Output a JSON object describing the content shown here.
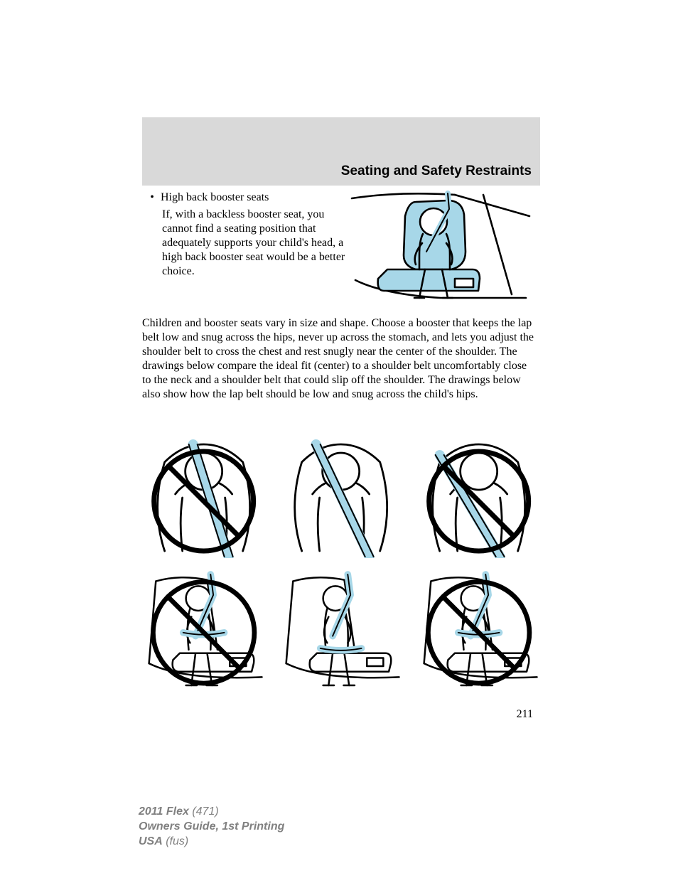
{
  "page": {
    "section_title": "Seating and Safety Restraints",
    "page_number": "211"
  },
  "bullet": {
    "heading": "High back booster seats",
    "body": "If, with a backless booster seat, you cannot find a seating position that adequately supports your child's head, a high back booster seat would be a better choice."
  },
  "paragraph": "Children and booster seats vary in size and shape. Choose a booster that keeps the lap belt low and snug across the hips, never up across the stomach, and lets you adjust the shoulder belt to cross the chest and rest snugly near the center of the shoulder. The drawings below compare the ideal fit (center) to a shoulder belt uncomfortably close to the neck and a shoulder belt that could slip off the shoulder. The drawings below also show how the lap belt should be low and snug across the child's hips.",
  "footer": {
    "line1_bold": "2011 Flex",
    "line1_rest": " (471)",
    "line2": "Owners Guide, 1st Printing",
    "line3_bold": "USA",
    "line3_rest": " (fus)"
  },
  "colors": {
    "header_gray": "#d9d9d9",
    "belt_blue": "#a7d7e8",
    "stroke": "#000000",
    "footer_gray": "#808080",
    "background": "#ffffff"
  },
  "diagrams": {
    "top": {
      "type": "illustration",
      "shows_prohibited": false,
      "belt_color": "#a7d7e8"
    },
    "grid": [
      {
        "pos": "row1-col1",
        "prohibited": true,
        "belt_color": "#a7d7e8",
        "desc": "shoulder belt near neck"
      },
      {
        "pos": "row1-col2",
        "prohibited": false,
        "belt_color": "#a7d7e8",
        "desc": "ideal shoulder belt"
      },
      {
        "pos": "row1-col3",
        "prohibited": true,
        "belt_color": "#a7d7e8",
        "desc": "shoulder belt off shoulder"
      },
      {
        "pos": "row2-col1",
        "prohibited": true,
        "belt_color": "#a7d7e8",
        "desc": "lap belt high"
      },
      {
        "pos": "row2-col2",
        "prohibited": false,
        "belt_color": "#a7d7e8",
        "desc": "lap belt low and snug"
      },
      {
        "pos": "row2-col3",
        "prohibited": true,
        "belt_color": "#a7d7e8",
        "desc": "lap belt on stomach"
      }
    ]
  }
}
